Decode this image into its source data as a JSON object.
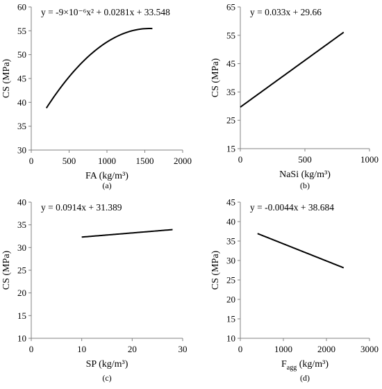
{
  "chart_data": [
    {
      "type": "line",
      "panel_label": "(a)",
      "equation": "y = -9×10⁻⁶x² + 0.0281x + 33.548",
      "xlabel": "FA (kg/m³)",
      "ylabel": "CS (MPa)",
      "xlim": [
        0,
        2000
      ],
      "ylim": [
        30,
        60
      ],
      "x_ticks": [
        0,
        500,
        1000,
        1500,
        2000
      ],
      "y_ticks": [
        30,
        35,
        40,
        45,
        50,
        55,
        60
      ],
      "curve": {
        "kind": "quadratic",
        "coefficients": [
          -9e-06,
          0.0281,
          33.548
        ],
        "x_range": [
          200,
          1600
        ]
      }
    },
    {
      "type": "line",
      "panel_label": "(b)",
      "equation": "y = 0.033x + 29.66",
      "xlabel": "NaSi (kg/m³)",
      "ylabel": "CS (MPa)",
      "xlim": [
        0,
        1000
      ],
      "ylim": [
        15,
        65
      ],
      "x_ticks": [
        0,
        500,
        1000
      ],
      "y_ticks": [
        15,
        25,
        35,
        45,
        55,
        65
      ],
      "curve": {
        "kind": "linear",
        "coefficients": [
          0.033,
          29.66
        ],
        "x_range": [
          0,
          800
        ]
      }
    },
    {
      "type": "line",
      "panel_label": "(c)",
      "equation": "y = 0.0914x + 31.389",
      "xlabel": "SP (kg/m³)",
      "ylabel": "CS (MPa)",
      "xlim": [
        0,
        30
      ],
      "ylim": [
        10,
        40
      ],
      "x_ticks": [
        0,
        10,
        20,
        30
      ],
      "y_ticks": [
        10,
        15,
        20,
        25,
        30,
        35,
        40
      ],
      "curve": {
        "kind": "linear",
        "coefficients": [
          0.0914,
          31.389
        ],
        "x_range": [
          10,
          28
        ]
      }
    },
    {
      "type": "line",
      "panel_label": "(d)",
      "equation": "y = -0.0044x + 38.684",
      "xlabel": "F",
      "xlabel_sub": "agg",
      "xlabel_unit": " (kg/m³)",
      "ylabel": "CS (MPa)",
      "xlim": [
        0,
        3000
      ],
      "ylim": [
        10,
        45
      ],
      "x_ticks": [
        0,
        1000,
        2000,
        3000
      ],
      "y_ticks": [
        10,
        15,
        20,
        25,
        30,
        35,
        40,
        45
      ],
      "curve": {
        "kind": "linear",
        "coefficients": [
          -0.0044,
          38.684
        ],
        "x_range": [
          400,
          2400
        ]
      }
    }
  ]
}
